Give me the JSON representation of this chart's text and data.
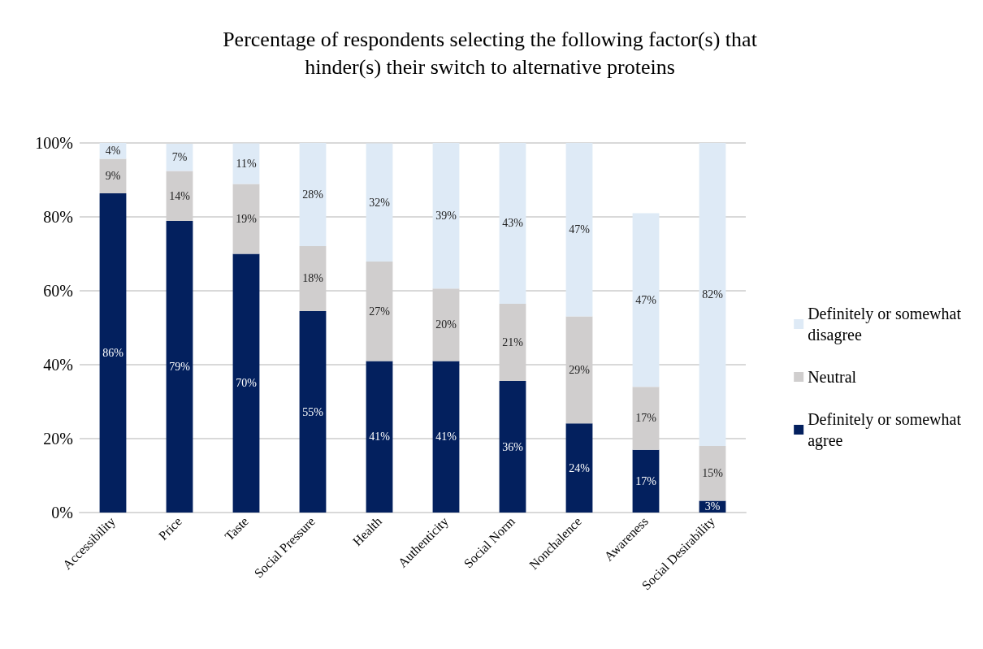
{
  "chart_data": {
    "type": "bar",
    "stacked": true,
    "title": "Percentage of respondents selecting the following factor(s) that\nhinder(s) their switch to alternative proteins",
    "categories": [
      "Accessibility",
      "Price",
      "Taste",
      "Social Pressure",
      "Health",
      "Authenticity",
      "Social Norm",
      "Nonchalence",
      "Awareness",
      "Social Desirability"
    ],
    "series": [
      {
        "name": "Definitely or somewhat agree",
        "color": "#03205e",
        "values": [
          86.4,
          78.9,
          70,
          54.5,
          41,
          41,
          35.6,
          24.1,
          17,
          3.2
        ],
        "value_labels": [
          "86%",
          "79%",
          "70%",
          "55%",
          "41%",
          "41%",
          "36%",
          "24%",
          "17%",
          "3%"
        ]
      },
      {
        "name": "Neutral",
        "color": "#d0cece",
        "values": [
          9.3,
          13.5,
          18.9,
          17.6,
          26.9,
          19.6,
          20.9,
          29.0,
          17,
          14.8
        ],
        "value_labels": [
          "9%",
          "14%",
          "19%",
          "18%",
          "27%",
          "20%",
          "21%",
          "29%",
          "17%",
          "15%"
        ]
      },
      {
        "name": "Definitely or somewhat disagree",
        "color": "#deeaf6",
        "values": [
          4.3,
          7.4,
          11,
          27.9,
          32,
          39.4,
          43.5,
          46.9,
          47,
          82.0
        ],
        "value_labels": [
          "4%",
          "7%",
          "11%",
          "28%",
          "32%",
          "39%",
          "43%",
          "47%",
          "47%",
          "82%"
        ]
      }
    ],
    "ylim": [
      0,
      100
    ],
    "yticks": [
      {
        "value": 0,
        "label": "0%"
      },
      {
        "value": 20,
        "label": "20%"
      },
      {
        "value": 40,
        "label": "40%"
      },
      {
        "value": 60,
        "label": "60%"
      },
      {
        "value": 80,
        "label": "80%"
      },
      {
        "value": 100,
        "label": "100%"
      }
    ],
    "grid": "y",
    "legend": "right"
  }
}
